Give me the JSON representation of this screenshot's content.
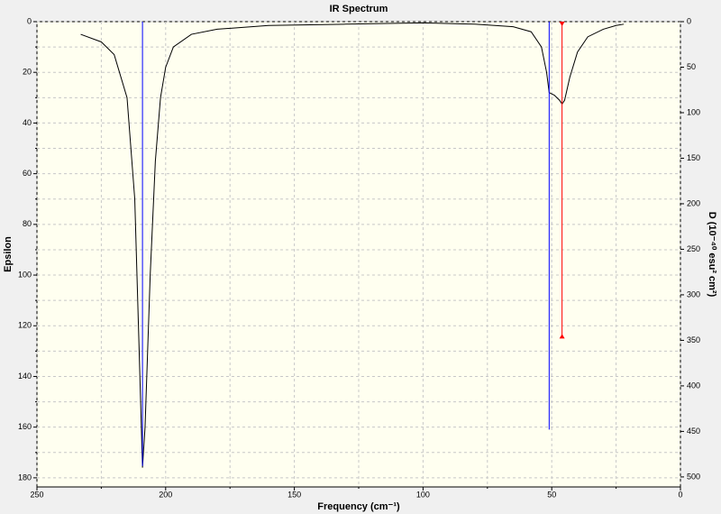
{
  "chart_data": {
    "type": "line",
    "title": "IR Spectrum",
    "xlabel": "Frequency (cm⁻¹)",
    "ylabel": "Epsilon",
    "y2label": "D (10⁻⁴⁰ esu² cm²)",
    "xlim": [
      250,
      0
    ],
    "ylim": [
      0,
      183.6
    ],
    "y2lim": [
      0,
      511
    ],
    "xticks": [
      250,
      200,
      150,
      100,
      50,
      0
    ],
    "xminorticks": [
      225,
      175,
      125,
      75,
      25
    ],
    "yticks": [
      0,
      20,
      40,
      60,
      80,
      100,
      120,
      140,
      160,
      180
    ],
    "yminorticks": [
      10,
      30,
      50,
      70,
      90,
      110,
      130,
      150,
      170
    ],
    "y2ticks": [
      0,
      50,
      100,
      150,
      200,
      250,
      300,
      350,
      400,
      450,
      500
    ],
    "grid": true,
    "series": [
      {
        "color": "#000000",
        "x": [
          233,
          225,
          220,
          215,
          212,
          210,
          209,
          208,
          206,
          204,
          202,
          200,
          197,
          190,
          180,
          160,
          130,
          100,
          80,
          65,
          58,
          54,
          52,
          51,
          49,
          47,
          46,
          45,
          43,
          40,
          36,
          30,
          25,
          22
        ],
        "values": [
          5,
          8,
          13,
          30,
          70,
          140,
          176,
          160,
          100,
          55,
          30,
          18,
          10,
          5,
          3,
          1.5,
          1,
          0.5,
          1,
          2,
          4,
          10,
          20,
          28,
          29,
          31,
          32.5,
          31,
          22,
          12,
          6,
          3,
          1.5,
          1
        ]
      },
      {
        "type": "stick",
        "axis": "y2",
        "x": [
          209,
          51,
          46
        ],
        "values": [
          488,
          448,
          345
        ],
        "colors": [
          "#0000ff",
          "#0000ff",
          "#ff0000"
        ],
        "markers": [
          false,
          false,
          true
        ]
      }
    ]
  }
}
